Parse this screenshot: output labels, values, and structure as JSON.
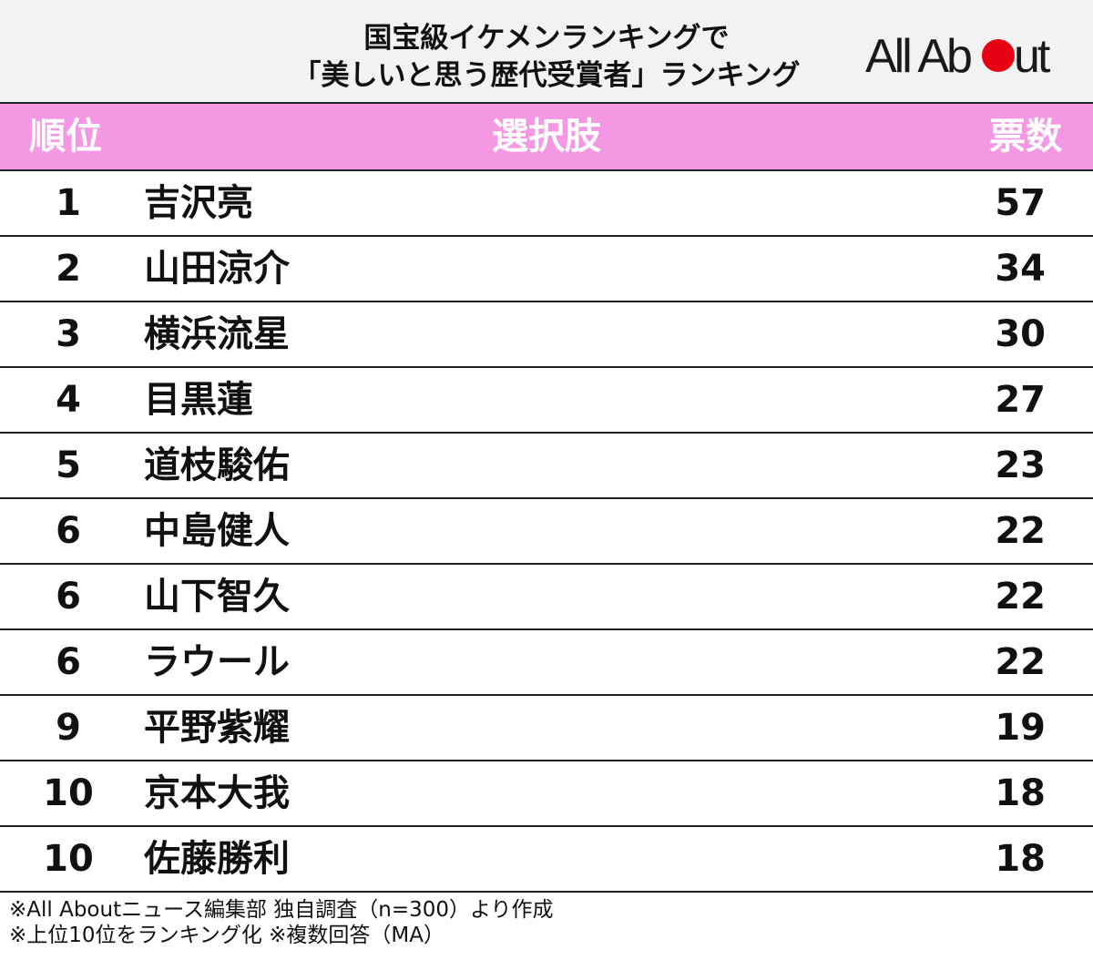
{
  "title": {
    "line1": "国宝級イケメンランキングで",
    "line2": "「美しいと思う歴代受賞者」ランキング"
  },
  "logo": {
    "text_left": "All Ab",
    "text_right": "ut",
    "accent_color": "#e60012"
  },
  "chart_data": {
    "type": "table",
    "columns": [
      "順位",
      "選択肢",
      "票数"
    ],
    "rows": [
      {
        "rank": "1",
        "name": "吉沢亮",
        "votes": "57"
      },
      {
        "rank": "2",
        "name": "山田涼介",
        "votes": "34"
      },
      {
        "rank": "3",
        "name": "横浜流星",
        "votes": "30"
      },
      {
        "rank": "4",
        "name": "目黒蓮",
        "votes": "27"
      },
      {
        "rank": "5",
        "name": "道枝駿佑",
        "votes": "23"
      },
      {
        "rank": "6",
        "name": "中島健人",
        "votes": "22"
      },
      {
        "rank": "6",
        "name": "山下智久",
        "votes": "22"
      },
      {
        "rank": "6",
        "name": "ラウール",
        "votes": "22"
      },
      {
        "rank": "9",
        "name": "平野紫耀",
        "votes": "19"
      },
      {
        "rank": "10",
        "name": "京本大我",
        "votes": "18"
      },
      {
        "rank": "10",
        "name": "佐藤勝利",
        "votes": "18"
      }
    ],
    "header_color": "#f598e4"
  },
  "notes": [
    "※All Aboutニュース編集部 独自調査（n=300）より作成",
    "※上位10位をランキング化 ※複数回答（MA）"
  ]
}
